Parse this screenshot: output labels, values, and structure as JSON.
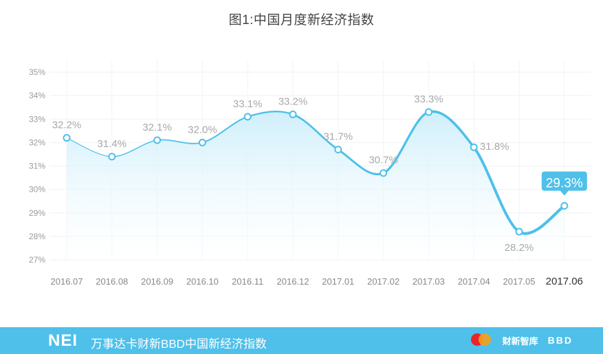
{
  "page": {
    "title": "图1:中国月度新经济指数"
  },
  "footer": {
    "brand": "NEI",
    "description": "万事达卡财新BBD中国新经济指数",
    "logos": [
      {
        "name": "mastercard-logo"
      },
      {
        "name": "caixin-zhiku-logo",
        "text": "财新智库"
      },
      {
        "name": "bbd-logo",
        "text": "BBD"
      }
    ]
  },
  "colors": {
    "line": "#4ec0ea",
    "area_top": "#cfeefb",
    "footer": "#4ec0ea",
    "highlight": "#4ec0ea"
  },
  "chart_data": {
    "type": "line",
    "categories": [
      "2016.07",
      "2016.08",
      "2016.09",
      "2016.10",
      "2016.11",
      "2016.12",
      "2017.01",
      "2017.02",
      "2017.03",
      "2017.04",
      "2017.05",
      "2017.06"
    ],
    "series": [
      {
        "values": [
          32.2,
          31.4,
          32.1,
          32.0,
          33.1,
          33.2,
          31.7,
          30.7,
          33.3,
          31.8,
          28.2,
          29.3
        ]
      }
    ],
    "labels": [
      "32.2%",
      "31.4%",
      "32.1%",
      "32.0%",
      "33.1%",
      "33.2%",
      "31.7%",
      "30.7%",
      "33.3%",
      "31.8%",
      "28.2%",
      "29.3%"
    ],
    "ylim": [
      27,
      35
    ],
    "yticks": [
      "27%",
      "28%",
      "29%",
      "30%",
      "31%",
      "32%",
      "33%",
      "34%",
      "35%"
    ],
    "grid": true,
    "highlight_index": 11
  }
}
